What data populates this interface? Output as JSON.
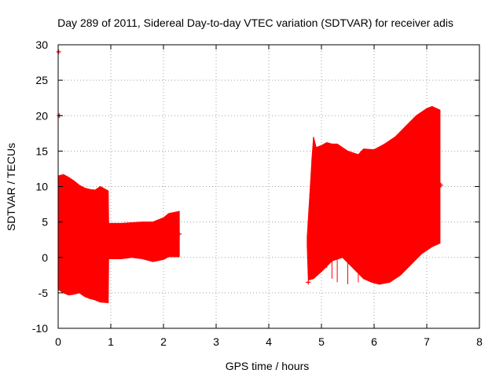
{
  "chart_data": {
    "type": "area",
    "title": "Day 289 of 2011, Sidereal Day-to-day VTEC variation (SDTVAR) for receiver adis",
    "xlabel": "GPS time / hours",
    "ylabel": "SDTVAR / TECUs",
    "xlim": [
      0,
      8
    ],
    "ylim": [
      -10,
      30
    ],
    "xticks": [
      "0",
      "1",
      "2",
      "3",
      "4",
      "5",
      "6",
      "7",
      "8"
    ],
    "yticks": [
      "-10",
      "-5",
      "0",
      "5",
      "10",
      "15",
      "20",
      "25",
      "30"
    ],
    "grid": true,
    "legend": "none",
    "color": "#ff0000",
    "segments": [
      {
        "upper": [
          [
            0.0,
            11.5
          ],
          [
            0.1,
            11.7
          ],
          [
            0.2,
            11.3
          ],
          [
            0.3,
            10.8
          ],
          [
            0.4,
            10.2
          ],
          [
            0.5,
            9.8
          ],
          [
            0.6,
            9.6
          ],
          [
            0.7,
            9.5
          ],
          [
            0.8,
            10.0
          ],
          [
            0.95,
            9.4
          ],
          [
            0.96,
            4.8
          ],
          [
            1.2,
            4.8
          ],
          [
            1.4,
            4.9
          ],
          [
            1.6,
            5.0
          ],
          [
            1.8,
            5.0
          ],
          [
            2.0,
            5.6
          ],
          [
            2.1,
            6.2
          ],
          [
            2.3,
            6.5
          ]
        ],
        "lower": [
          [
            0.0,
            -4.5
          ],
          [
            0.1,
            -5.0
          ],
          [
            0.2,
            -5.3
          ],
          [
            0.3,
            -5.2
          ],
          [
            0.4,
            -5.0
          ],
          [
            0.5,
            -5.5
          ],
          [
            0.6,
            -5.8
          ],
          [
            0.7,
            -6.0
          ],
          [
            0.8,
            -6.3
          ],
          [
            0.95,
            -6.4
          ],
          [
            0.96,
            -0.2
          ],
          [
            1.2,
            -0.2
          ],
          [
            1.4,
            0.0
          ],
          [
            1.6,
            -0.2
          ],
          [
            1.8,
            -0.6
          ],
          [
            2.0,
            -0.3
          ],
          [
            2.1,
            0.1
          ],
          [
            2.3,
            0.1
          ]
        ]
      },
      {
        "upper": [
          [
            4.73,
            3.0
          ],
          [
            4.78,
            9.0
          ],
          [
            4.82,
            14.0
          ],
          [
            4.85,
            17.0
          ],
          [
            4.9,
            15.5
          ],
          [
            5.0,
            15.8
          ],
          [
            5.1,
            16.2
          ],
          [
            5.2,
            16.0
          ],
          [
            5.3,
            16.0
          ],
          [
            5.5,
            15.0
          ],
          [
            5.7,
            14.5
          ],
          [
            5.8,
            15.3
          ],
          [
            6.0,
            15.2
          ],
          [
            6.2,
            16.0
          ],
          [
            6.4,
            17.0
          ],
          [
            6.6,
            18.5
          ],
          [
            6.8,
            20.0
          ],
          [
            7.0,
            21.0
          ],
          [
            7.1,
            21.3
          ],
          [
            7.25,
            20.8
          ]
        ],
        "lower": [
          [
            4.73,
            1.5
          ],
          [
            4.75,
            -3.2
          ],
          [
            4.85,
            -3.0
          ],
          [
            5.0,
            -2.0
          ],
          [
            5.2,
            -0.5
          ],
          [
            5.4,
            0.0
          ],
          [
            5.6,
            -1.5
          ],
          [
            5.8,
            -3.0
          ],
          [
            5.95,
            -3.5
          ],
          [
            6.1,
            -3.8
          ],
          [
            6.3,
            -3.5
          ],
          [
            6.5,
            -2.5
          ],
          [
            6.7,
            -1.0
          ],
          [
            6.9,
            0.5
          ],
          [
            7.1,
            1.5
          ],
          [
            7.25,
            2.0
          ]
        ]
      }
    ],
    "outlier_points": [
      [
        0.01,
        29.0
      ],
      [
        0.02,
        20.0
      ],
      [
        1.0,
        2.0
      ],
      [
        2.3,
        3.3
      ],
      [
        4.75,
        -3.5
      ],
      [
        7.27,
        10.2
      ]
    ]
  }
}
